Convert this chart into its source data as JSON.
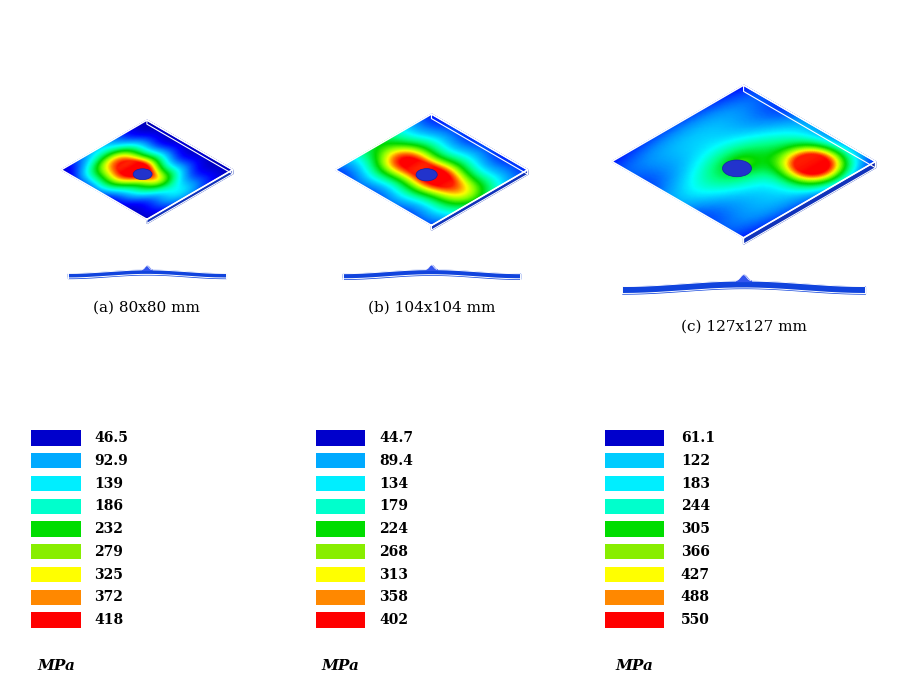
{
  "legends": [
    {
      "label": "(a) 80x80 mm",
      "unit": "MPa",
      "colors": [
        "#0000cc",
        "#00aaff",
        "#00eeff",
        "#00ffcc",
        "#00dd00",
        "#88ee00",
        "#ffff00",
        "#ff8800",
        "#ff0000"
      ],
      "values": [
        "46.5",
        "92.9",
        "139",
        "186",
        "232",
        "279",
        "325",
        "372",
        "418"
      ]
    },
    {
      "label": "(b) 104x104 mm",
      "unit": "MPa",
      "colors": [
        "#0000cc",
        "#00aaff",
        "#00eeff",
        "#00ffcc",
        "#00dd00",
        "#88ee00",
        "#ffff00",
        "#ff8800",
        "#ff0000"
      ],
      "values": [
        "44.7",
        "89.4",
        "134",
        "179",
        "224",
        "268",
        "313",
        "358",
        "402"
      ]
    },
    {
      "label": "(c) 127x127 mm",
      "unit": "MPa",
      "colors": [
        "#0000cc",
        "#00ccff",
        "#00eeff",
        "#00ffcc",
        "#00dd00",
        "#88ee00",
        "#ffff00",
        "#ff8800",
        "#ff0000"
      ],
      "values": [
        "61.1",
        "122",
        "183",
        "244",
        "305",
        "366",
        "427",
        "488",
        "550"
      ]
    }
  ],
  "panel_labels": [
    "(a) 80x80 mm",
    "(b) 104x104 mm",
    "(c) 127x127 mm"
  ],
  "background_color": "#ffffff",
  "label_fontsize": 11,
  "legend_fontsize": 10,
  "unit_fontsize": 11
}
